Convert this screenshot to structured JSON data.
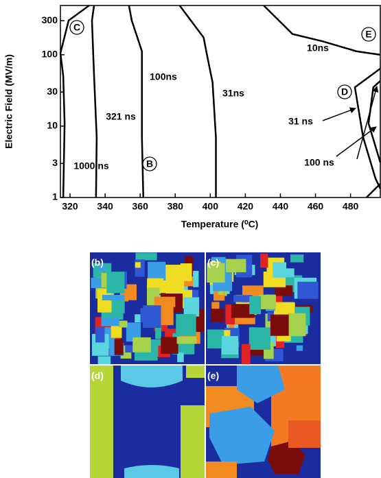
{
  "chart_data": {
    "type": "line",
    "ylabel": "Electric Field (MV/m)",
    "xlabel": "Temperature (⁰C)",
    "log_y": true,
    "color": "#000000",
    "xlim": [
      314.5,
      497
    ],
    "ylim": [
      1,
      490
    ],
    "xticks": [
      320,
      340,
      360,
      380,
      400,
      420,
      440,
      460,
      480
    ],
    "yticks": [
      1,
      3,
      10,
      30,
      100,
      300
    ],
    "series": [
      {
        "x": [
          316.1,
          316.9,
          316.1,
          314.5,
          319.2,
          330.9
        ],
        "values": [
          1,
          10.9,
          51,
          105,
          302,
          490
        ]
      },
      {
        "x": [
          334.8,
          335.2,
          333.7,
          332.5,
          333.7
        ],
        "values": [
          1,
          7.0,
          51,
          302,
          490
        ]
      },
      {
        "x": [
          361.8,
          361.0,
          361.0,
          355.2,
          353.6
        ],
        "values": [
          1,
          7.0,
          112,
          302,
          490
        ]
      },
      {
        "x": [
          403.2,
          403.2,
          401.3,
          398.1,
          396.2,
          382.5
        ],
        "values": [
          1,
          7.0,
          41,
          100,
          174,
          490
        ]
      },
      {
        "x": [
          430.5,
          446.9,
          463.8,
          483.3,
          497
        ],
        "values": [
          490,
          195,
          155,
          112,
          100
        ]
      },
      {
        "x": [
          497,
          482.5,
          487.2,
          494.2,
          497
        ],
        "values": [
          64,
          35,
          7.0,
          1.86,
          1.33
        ]
      },
      {
        "x": [
          497,
          493.0,
          490.3,
          497
        ],
        "values": [
          43,
          35,
          10.9,
          3.1
        ]
      },
      {
        "x": [
          489.1,
          497
        ],
        "values": [
          1,
          1.56
        ]
      }
    ],
    "annotations": [
      "1000 ns",
      "321 ns",
      "100ns",
      "31ns",
      "10ns",
      "31 ns",
      "100 ns",
      "C",
      "B",
      "D",
      "E"
    ]
  },
  "panels": [
    "(b)",
    "(c)",
    "(d)",
    "(e)"
  ]
}
